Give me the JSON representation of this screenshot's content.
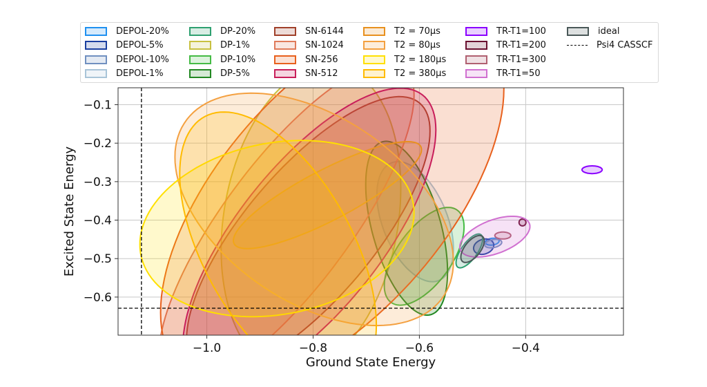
{
  "chart_data": {
    "type": "ellipse-scatter",
    "xlabel": "Ground State Energy",
    "ylabel": "Excited State Energy",
    "xlim": [
      -1.167,
      -0.216
    ],
    "ylim": [
      -0.699,
      -0.056
    ],
    "xticks": [
      -1.0,
      -0.8,
      -0.6,
      -0.4
    ],
    "xtick_labels": [
      "−1.0",
      "−0.8",
      "−0.6",
      "−0.4"
    ],
    "yticks": [
      -0.1,
      -0.2,
      -0.3,
      -0.4,
      -0.5,
      -0.6
    ],
    "ytick_labels": [
      "−0.1",
      "−0.2",
      "−0.3",
      "−0.4",
      "−0.5",
      "−0.6"
    ],
    "grid": true,
    "legend_placement": "top (outside)",
    "ellipse_params": "center (cx, cy), half-extent in x (ex), half-extent in y (ey), correlation r",
    "series": [
      {
        "name": "DEPOL-20%",
        "color": "#1e90f0",
        "cx": -0.463,
        "cy": -0.456,
        "ex": 0.013,
        "ey": 0.009,
        "r": 0.2
      },
      {
        "name": "DEPOL-5%",
        "color": "#1a3fa0",
        "cx": -0.479,
        "cy": -0.469,
        "ex": 0.019,
        "ey": 0.02,
        "r": 0.2
      },
      {
        "name": "DEPOL-10%",
        "color": "#7090c0",
        "cx": -0.461,
        "cy": -0.461,
        "ex": 0.016,
        "ey": 0.011,
        "r": 0.3
      },
      {
        "name": "DEPOL-1%",
        "color": "#a8c4d8",
        "cx": -0.608,
        "cy": -0.404,
        "ex": 0.072,
        "ey": 0.156,
        "r": -0.45
      },
      {
        "name": "DP-20%",
        "color": "#2ea070",
        "cx": -0.506,
        "cy": -0.48,
        "ex": 0.025,
        "ey": 0.044,
        "r": 0.7
      },
      {
        "name": "DP-1%",
        "color": "#c8c040",
        "cx": -0.804,
        "cy": -0.397,
        "ex": 0.169,
        "ey": 0.399,
        "r": 0.2
      },
      {
        "name": "DP-10%",
        "color": "#44bb44",
        "cx": -0.591,
        "cy": -0.494,
        "ex": 0.075,
        "ey": 0.127,
        "r": 0.6
      },
      {
        "name": "DP-5%",
        "color": "#228822",
        "cx": -0.624,
        "cy": -0.421,
        "ex": 0.077,
        "ey": 0.226,
        "r": -0.5
      },
      {
        "name": "SN-6144",
        "color": "#a0402a",
        "cx": -0.809,
        "cy": -0.438,
        "ex": 0.229,
        "ey": 0.359,
        "r": 0.75
      },
      {
        "name": "SN-1024",
        "color": "#e07a5a",
        "cx": -0.85,
        "cy": -0.411,
        "ex": 0.24,
        "ey": 0.42,
        "r": 0.8
      },
      {
        "name": "SN-256",
        "color": "#e8601c",
        "cx": -0.764,
        "cy": -0.349,
        "ex": 0.323,
        "ey": 0.485,
        "r": 0.6
      },
      {
        "name": "SN-512",
        "color": "#c81e5a",
        "cx": -0.807,
        "cy": -0.445,
        "ex": 0.238,
        "ey": 0.388,
        "r": 0.72
      },
      {
        "name": "T2 = 70µs",
        "color": "#e8901e",
        "cx": -0.773,
        "cy": -0.335,
        "ex": 0.177,
        "ey": 0.139,
        "r": 0.85
      },
      {
        "name": "T2 = 80µs",
        "color": "#f4a040",
        "cx": -0.798,
        "cy": -0.372,
        "ex": 0.262,
        "ey": 0.302,
        "r": -0.45
      },
      {
        "name": "T2 = 180µs",
        "color": "#ffe000",
        "cx": -0.868,
        "cy": -0.422,
        "ex": 0.258,
        "ey": 0.229,
        "r": 0.18
      },
      {
        "name": "T2 = 380µs",
        "color": "#ffbb00",
        "cx": -0.866,
        "cy": -0.476,
        "ex": 0.185,
        "ey": 0.357,
        "r": -0.55
      },
      {
        "name": "TR-T1=100",
        "color": "#8a00ff",
        "cx": -0.275,
        "cy": -0.269,
        "ex": 0.019,
        "ey": 0.01,
        "r": 0.0
      },
      {
        "name": "TR-T1=200",
        "color": "#6a1030",
        "cx": -0.406,
        "cy": -0.406,
        "ex": 0.0065,
        "ey": 0.009,
        "r": 0.0
      },
      {
        "name": "TR-T1=300",
        "color": "#b06070",
        "cx": -0.443,
        "cy": -0.44,
        "ex": 0.015,
        "ey": 0.009,
        "r": 0.0
      },
      {
        "name": "TR-T1=50",
        "color": "#d070d0",
        "cx": -0.458,
        "cy": -0.443,
        "ex": 0.066,
        "ey": 0.053,
        "r": 0.5
      },
      {
        "name": "ideal",
        "color": "#4a5858",
        "cx": -0.5,
        "cy": -0.475,
        "ex": 0.022,
        "ey": 0.035,
        "r": 0.6
      }
    ],
    "reference_lines": {
      "name": "Psi4 CASSCF",
      "color": "#000000",
      "x": -1.123,
      "y": -0.629
    }
  }
}
